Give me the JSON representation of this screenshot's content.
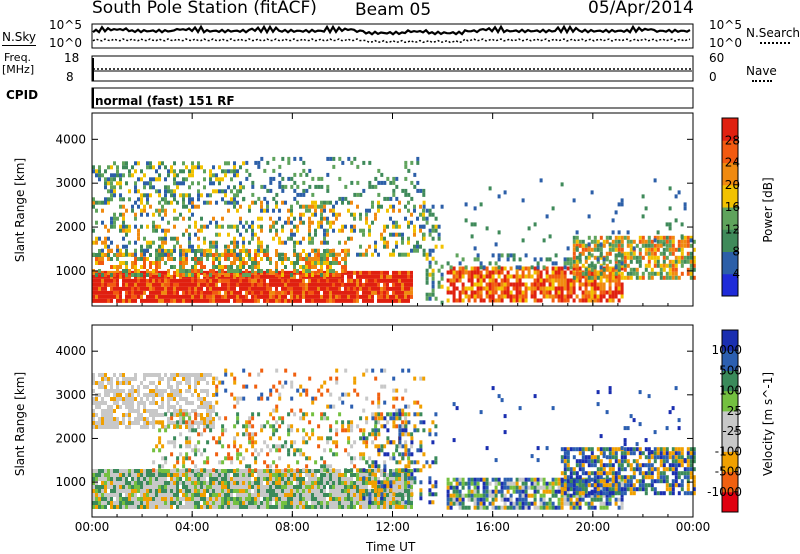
{
  "header": {
    "station": "South Pole Station (fitACF)",
    "beam": "Beam 05",
    "date": "05/Apr/2014"
  },
  "panels": {
    "nsky": {
      "left_label": "N.Sky",
      "left_ticks": [
        "10^5",
        "10^0"
      ],
      "right_label": "N.Search",
      "right_ticks": [
        "10^5",
        "10^0"
      ]
    },
    "freq": {
      "left_label_1": "Freq.",
      "left_label_2": "[MHz]",
      "left_ticks": [
        "18",
        "8"
      ],
      "right_label": "Nave",
      "right_ticks": [
        "60",
        "0"
      ]
    },
    "cpid": {
      "left_label": "CPID",
      "text": "normal (fast) 151 RF"
    }
  },
  "colors": {
    "power": [
      "#1f2bd8",
      "#2c5fa8",
      "#3f8a5a",
      "#5fa35c",
      "#f2c200",
      "#f08a10",
      "#f25a10",
      "#e02010"
    ],
    "velocity": [
      "#e00010",
      "#f06010",
      "#f0a000",
      "#c8c8c8",
      "#c8c8c8",
      "#74c040",
      "#3a8a5a",
      "#2c5fb0",
      "#1a2eb0"
    ]
  },
  "chart_data": [
    {
      "type": "heatmap",
      "title": "Power",
      "ylabel": "Slant Range [km]",
      "xlabel": "Time UT",
      "x_ticks": [
        "00:00",
        "04:00",
        "08:00",
        "12:00",
        "16:00",
        "20:00",
        "00:00"
      ],
      "y_ticks": [
        1000,
        2000,
        3000,
        4000
      ],
      "ylim": [
        200,
        4600
      ],
      "colorbar_label": "Power [dB]",
      "colorbar_ticks": [
        4,
        8,
        12,
        16,
        20,
        24,
        28
      ],
      "colorbar_range": [
        0,
        32
      ]
    },
    {
      "type": "heatmap",
      "title": "Velocity",
      "ylabel": "Slant Range [km]",
      "xlabel": "Time UT",
      "x_ticks": [
        "00:00",
        "04:00",
        "08:00",
        "12:00",
        "16:00",
        "20:00",
        "00:00"
      ],
      "y_ticks": [
        1000,
        2000,
        3000,
        4000
      ],
      "ylim": [
        200,
        4600
      ],
      "colorbar_label": "Velocity [m s^-1]",
      "colorbar_ticks": [
        "1000",
        "500",
        "100",
        "25",
        "-25",
        "-100",
        "-500",
        "-1000"
      ]
    }
  ]
}
